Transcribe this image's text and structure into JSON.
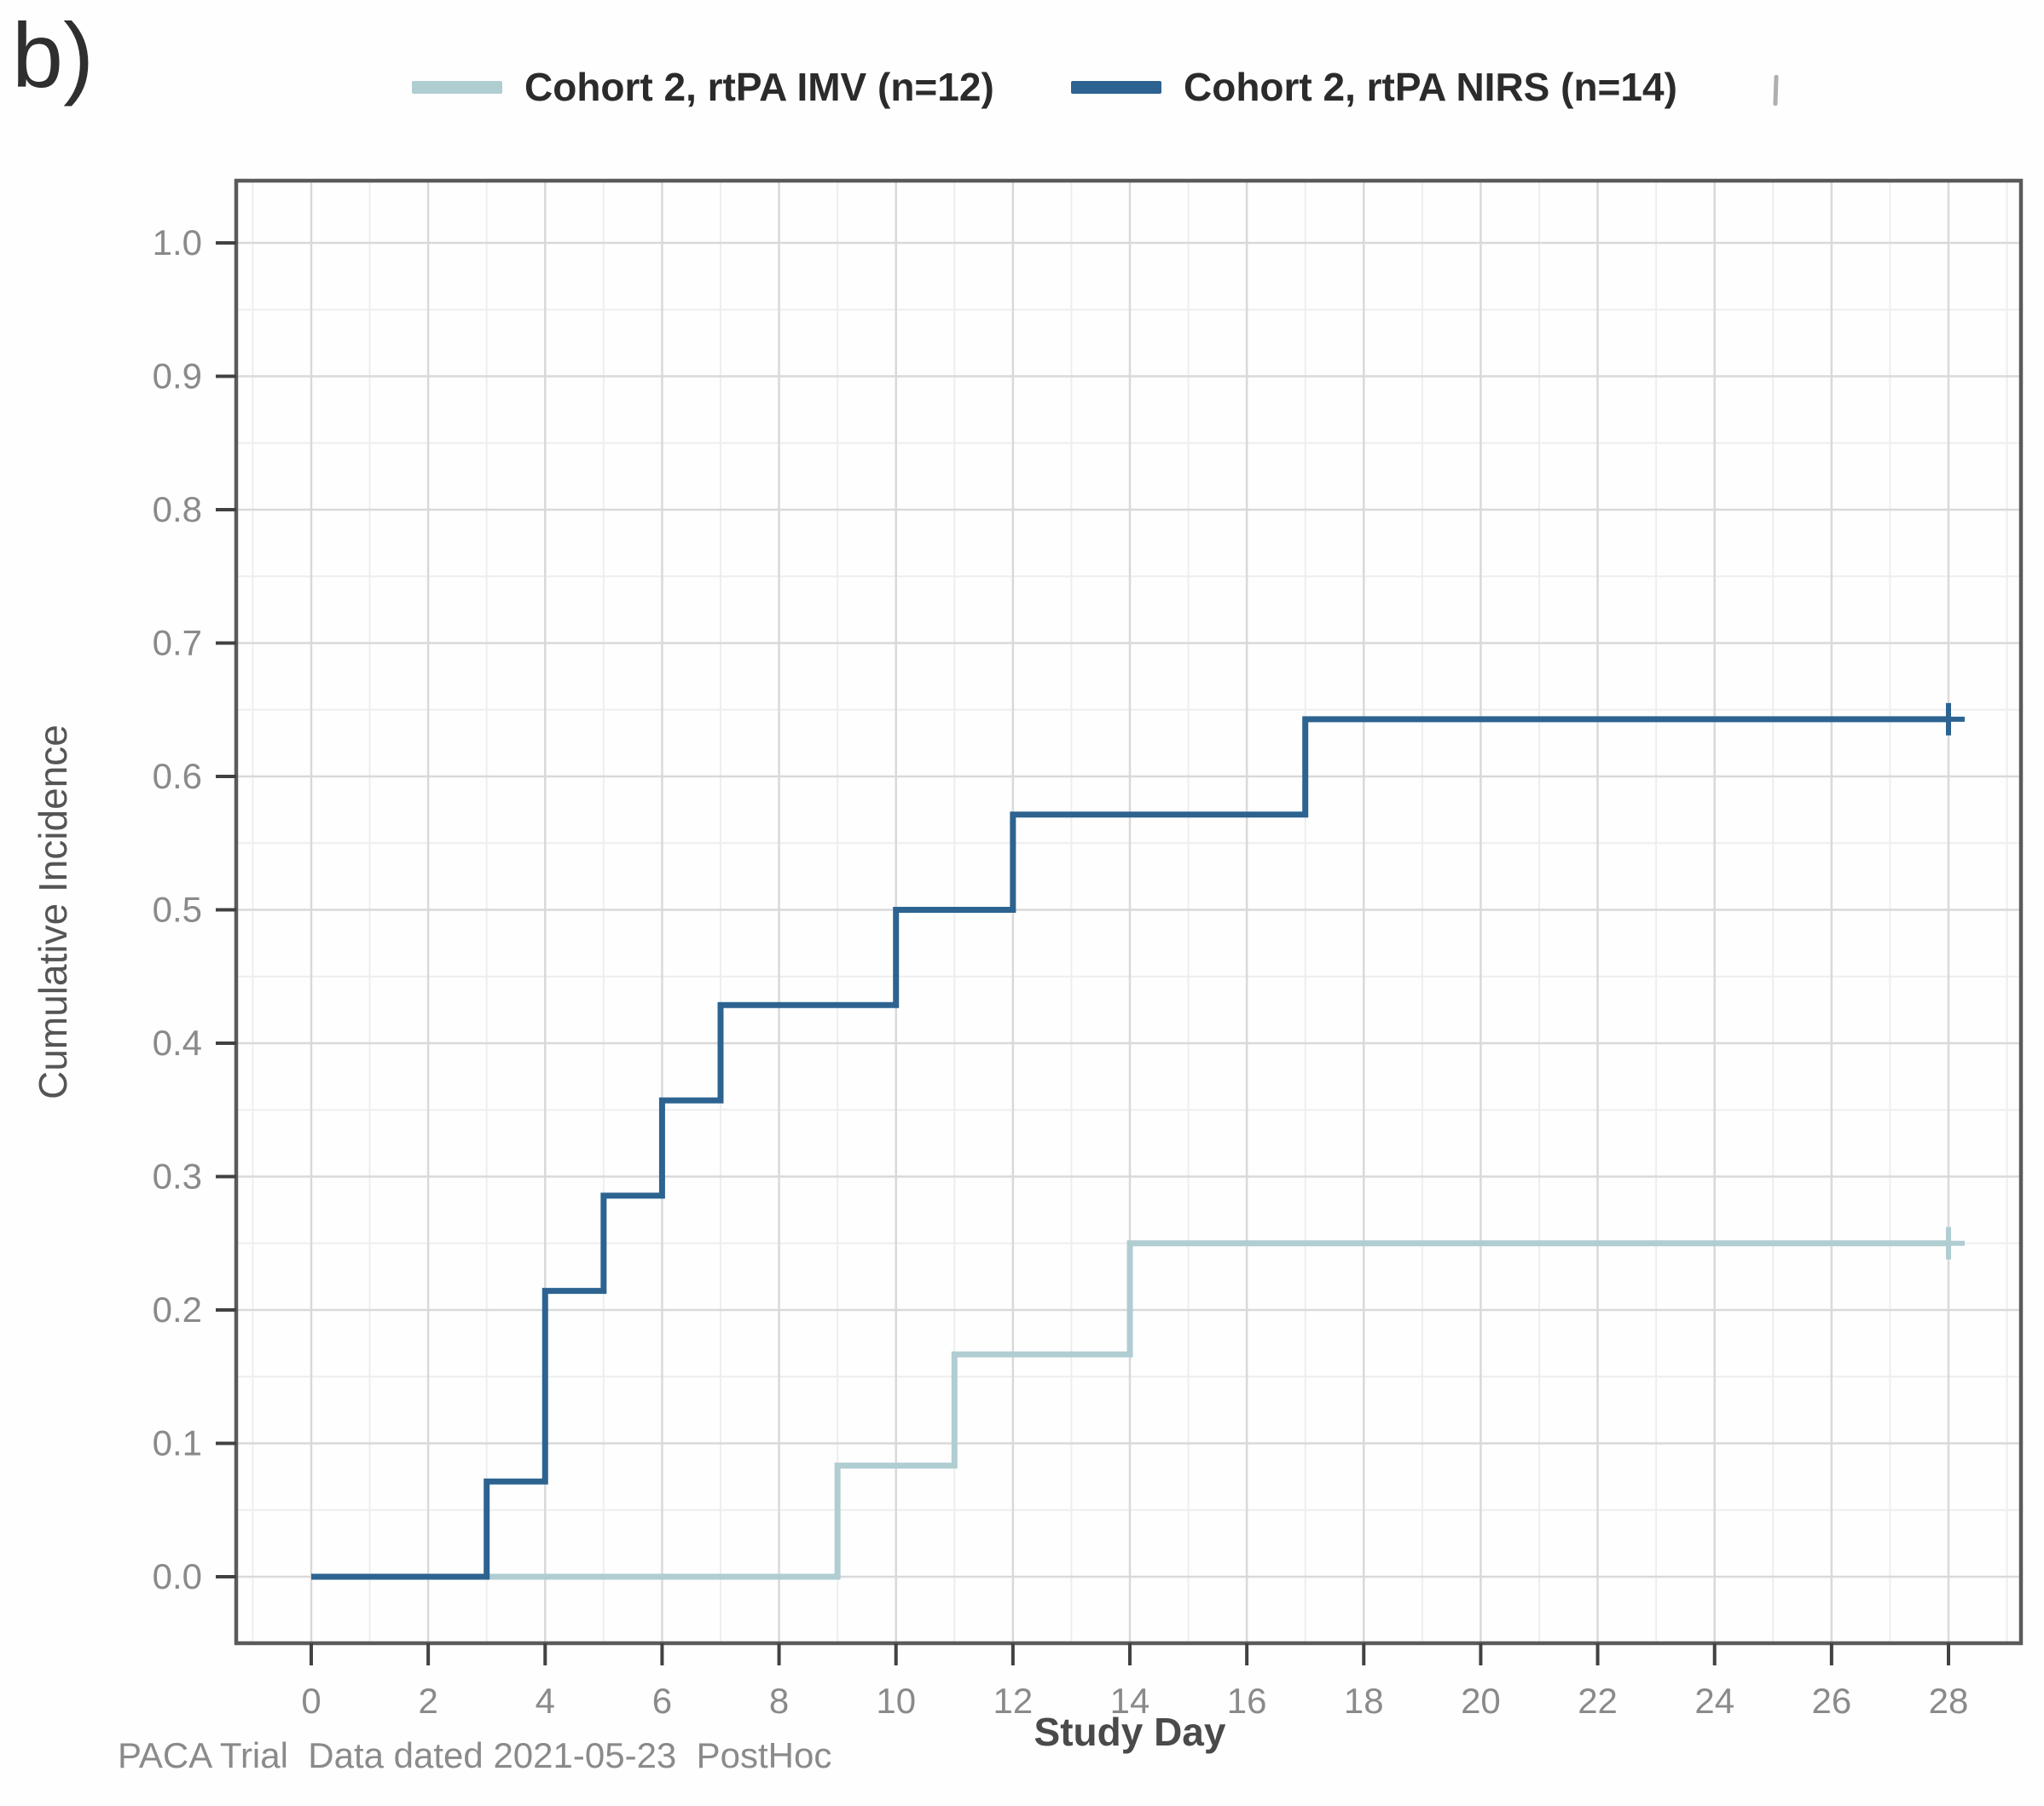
{
  "figure": {
    "panel_label": "b)",
    "footer": "PACA Trial  Data dated 2021-05-23  PostHoc"
  },
  "chart_data": {
    "type": "line",
    "subtype": "cumulative-incidence-step",
    "title": "",
    "xlabel": "Study Day",
    "ylabel": "Cumulative Incidence",
    "xlim": [
      0,
      28
    ],
    "ylim": [
      0.0,
      1.0
    ],
    "x_ticks": [
      0,
      2,
      4,
      6,
      8,
      10,
      12,
      14,
      16,
      18,
      20,
      22,
      24,
      26,
      28
    ],
    "y_ticks": [
      0.0,
      0.1,
      0.2,
      0.3,
      0.4,
      0.5,
      0.6,
      0.7,
      0.8,
      0.9,
      1.0
    ],
    "grid": "major and minor, light gray",
    "legend_position": "top",
    "axis_tick_label_color": "#8a8a8a",
    "series": [
      {
        "name": "Cohort 2, rtPA IMV (n=12)",
        "color": "#b0cdd2",
        "n": 12,
        "steps": [
          {
            "day": 0,
            "value": 0.0
          },
          {
            "day": 9,
            "value": 0.0833
          },
          {
            "day": 11,
            "value": 0.1667
          },
          {
            "day": 14,
            "value": 0.25
          }
        ],
        "end_day": 28,
        "censored_days": [
          28
        ]
      },
      {
        "name": "Cohort 2, rtPA NIRS (n=14)",
        "color": "#2d6390",
        "n": 14,
        "steps": [
          {
            "day": 0,
            "value": 0.0
          },
          {
            "day": 3,
            "value": 0.0714
          },
          {
            "day": 4,
            "value": 0.2143
          },
          {
            "day": 5,
            "value": 0.2857
          },
          {
            "day": 6,
            "value": 0.3571
          },
          {
            "day": 7,
            "value": 0.4286
          },
          {
            "day": 10,
            "value": 0.5
          },
          {
            "day": 12,
            "value": 0.5714
          },
          {
            "day": 17,
            "value": 0.6429
          }
        ],
        "end_day": 28,
        "censored_days": [
          28
        ]
      }
    ]
  }
}
